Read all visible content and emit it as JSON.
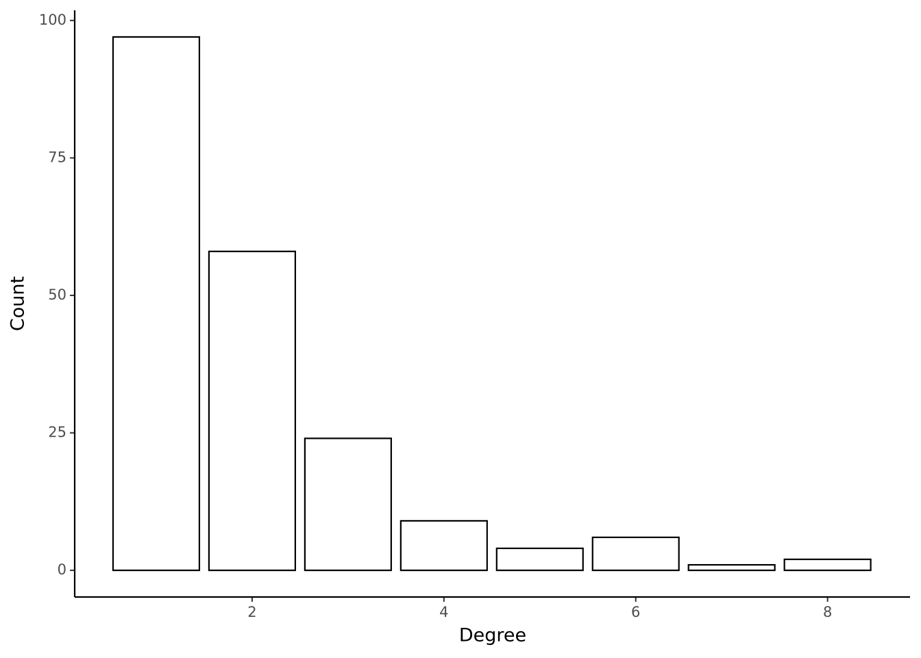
{
  "chart_data": {
    "type": "bar",
    "x": [
      1,
      2,
      3,
      4,
      5,
      6,
      7,
      8
    ],
    "values": [
      97,
      58,
      24,
      9,
      4,
      6,
      1,
      2
    ],
    "x_label": "Degree",
    "y_label": "Count",
    "fill": "#ffffff",
    "color": "#000000",
    "xlim": [
      0.15,
      8.86
    ],
    "xticks": [
      2,
      4,
      6,
      8
    ],
    "ylim": [
      -4.85,
      101.85
    ],
    "yticks": [
      0,
      25,
      50,
      75,
      100
    ],
    "grid": false
  }
}
